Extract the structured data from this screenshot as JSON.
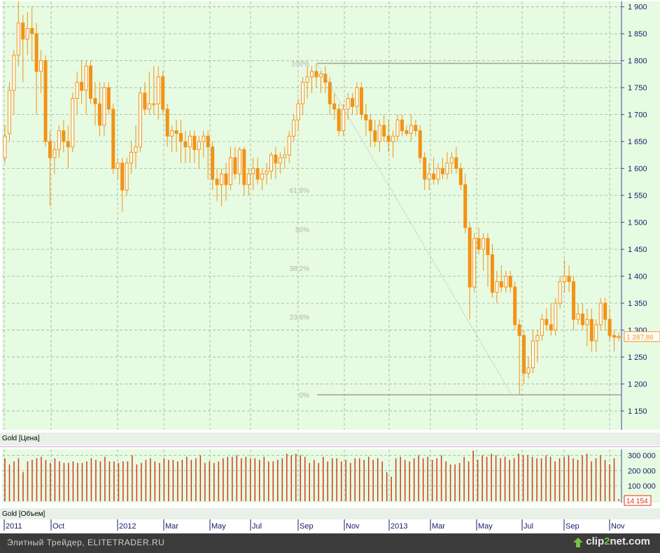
{
  "chart_data": [
    {
      "type": "candlestick",
      "title": "Gold [Цена]",
      "period": "weekly",
      "x_axis_ticks": [
        "2011",
        "Oct",
        "2012",
        "Mar",
        "May",
        "Jul",
        "Sep",
        "Nov",
        "2013",
        "Mar",
        "May",
        "Jul",
        "Sep",
        "Nov"
      ],
      "y_axis_ticks": [
        "1 150",
        "1 200",
        "1 250",
        "1 300",
        "1 350",
        "1 400",
        "1 450",
        "1 500",
        "1 550",
        "1 600",
        "1 650",
        "1 700",
        "1 750",
        "1 800",
        "1 850",
        "1 900"
      ],
      "ylim": [
        1115,
        1910
      ],
      "last_price_label": "1 287,86",
      "series": [
        {
          "name": "Gold",
          "ohlc": [
            [
              1620,
              1680,
              1610,
              1660
            ],
            [
              1665,
              1760,
              1650,
              1745
            ],
            [
              1745,
              1820,
              1700,
              1810
            ],
            [
              1810,
              1910,
              1790,
              1870
            ],
            [
              1870,
              1885,
              1760,
              1840
            ],
            [
              1840,
              1890,
              1810,
              1860
            ],
            [
              1860,
              1900,
              1800,
              1850
            ],
            [
              1850,
              1870,
              1700,
              1780
            ],
            [
              1780,
              1820,
              1740,
              1800
            ],
            [
              1800,
              1810,
              1640,
              1650
            ],
            [
              1650,
              1670,
              1530,
              1620
            ],
            [
              1620,
              1650,
              1590,
              1635
            ],
            [
              1635,
              1680,
              1620,
              1670
            ],
            [
              1670,
              1690,
              1630,
              1650
            ],
            [
              1650,
              1680,
              1600,
              1640
            ],
            [
              1640,
              1740,
              1630,
              1730
            ],
            [
              1730,
              1780,
              1700,
              1760
            ],
            [
              1760,
              1800,
              1720,
              1745
            ],
            [
              1745,
              1800,
              1700,
              1790
            ],
            [
              1790,
              1800,
              1720,
              1730
            ],
            [
              1730,
              1760,
              1680,
              1720
            ],
            [
              1720,
              1760,
              1660,
              1680
            ],
            [
              1680,
              1760,
              1660,
              1750
            ],
            [
              1750,
              1760,
              1700,
              1710
            ],
            [
              1710,
              1720,
              1590,
              1600
            ],
            [
              1600,
              1620,
              1580,
              1610
            ],
            [
              1610,
              1620,
              1520,
              1560
            ],
            [
              1560,
              1620,
              1550,
              1610
            ],
            [
              1610,
              1650,
              1590,
              1630
            ],
            [
              1630,
              1680,
              1600,
              1640
            ],
            [
              1640,
              1750,
              1630,
              1740
            ],
            [
              1740,
              1760,
              1700,
              1710
            ],
            [
              1710,
              1780,
              1700,
              1720
            ],
            [
              1720,
              1790,
              1700,
              1720
            ],
            [
              1720,
              1790,
              1690,
              1770
            ],
            [
              1770,
              1780,
              1700,
              1710
            ],
            [
              1710,
              1720,
              1640,
              1660
            ],
            [
              1660,
              1680,
              1630,
              1670
            ],
            [
              1670,
              1690,
              1630,
              1665
            ],
            [
              1665,
              1690,
              1610,
              1650
            ],
            [
              1650,
              1670,
              1610,
              1640
            ],
            [
              1640,
              1670,
              1610,
              1660
            ],
            [
              1660,
              1670,
              1610,
              1635
            ],
            [
              1635,
              1660,
              1600,
              1650
            ],
            [
              1650,
              1670,
              1620,
              1660
            ],
            [
              1660,
              1670,
              1580,
              1640
            ],
            [
              1640,
              1650,
              1560,
              1580
            ],
            [
              1580,
              1600,
              1540,
              1570
            ],
            [
              1570,
              1600,
              1530,
              1590
            ],
            [
              1590,
              1610,
              1540,
              1570
            ],
            [
              1570,
              1640,
              1560,
              1620
            ],
            [
              1620,
              1640,
              1580,
              1590
            ],
            [
              1590,
              1640,
              1570,
              1635
            ],
            [
              1635,
              1640,
              1550,
              1570
            ],
            [
              1570,
              1600,
              1550,
              1590
            ],
            [
              1590,
              1620,
              1560,
              1600
            ],
            [
              1600,
              1620,
              1570,
              1580
            ],
            [
              1580,
              1600,
              1560,
              1590
            ],
            [
              1590,
              1610,
              1570,
              1595
            ],
            [
              1595,
              1630,
              1580,
              1625
            ],
            [
              1625,
              1640,
              1580,
              1610
            ],
            [
              1610,
              1630,
              1590,
              1620
            ],
            [
              1620,
              1640,
              1600,
              1625
            ],
            [
              1625,
              1670,
              1610,
              1660
            ],
            [
              1660,
              1700,
              1650,
              1690
            ],
            [
              1690,
              1730,
              1670,
              1720
            ],
            [
              1720,
              1770,
              1700,
              1760
            ],
            [
              1760,
              1790,
              1730,
              1770
            ],
            [
              1770,
              1790,
              1740,
              1780
            ],
            [
              1780,
              1795,
              1750,
              1770
            ],
            [
              1770,
              1780,
              1740,
              1775
            ],
            [
              1775,
              1790,
              1740,
              1760
            ],
            [
              1760,
              1770,
              1700,
              1720
            ],
            [
              1720,
              1740,
              1690,
              1710
            ],
            [
              1710,
              1720,
              1660,
              1670
            ],
            [
              1670,
              1720,
              1660,
              1710
            ],
            [
              1710,
              1740,
              1690,
              1730
            ],
            [
              1730,
              1740,
              1700,
              1715
            ],
            [
              1715,
              1760,
              1700,
              1750
            ],
            [
              1750,
              1760,
              1690,
              1700
            ],
            [
              1700,
              1720,
              1660,
              1690
            ],
            [
              1690,
              1700,
              1640,
              1670
            ],
            [
              1670,
              1690,
              1640,
              1650
            ],
            [
              1650,
              1690,
              1630,
              1680
            ],
            [
              1680,
              1700,
              1650,
              1660
            ],
            [
              1660,
              1690,
              1630,
              1650
            ],
            [
              1650,
              1670,
              1620,
              1660
            ],
            [
              1660,
              1700,
              1650,
              1690
            ],
            [
              1690,
              1700,
              1660,
              1670
            ],
            [
              1670,
              1680,
              1660,
              1665
            ],
            [
              1665,
              1700,
              1650,
              1680
            ],
            [
              1680,
              1690,
              1660,
              1670
            ],
            [
              1670,
              1680,
              1610,
              1620
            ],
            [
              1620,
              1630,
              1560,
              1580
            ],
            [
              1580,
              1610,
              1560,
              1590
            ],
            [
              1590,
              1620,
              1570,
              1580
            ],
            [
              1580,
              1610,
              1570,
              1600
            ],
            [
              1600,
              1620,
              1580,
              1590
            ],
            [
              1590,
              1630,
              1580,
              1610
            ],
            [
              1610,
              1630,
              1590,
              1620
            ],
            [
              1620,
              1640,
              1590,
              1600
            ],
            [
              1600,
              1610,
              1560,
              1570
            ],
            [
              1570,
              1590,
              1480,
              1490
            ],
            [
              1490,
              1500,
              1320,
              1380
            ],
            [
              1380,
              1480,
              1370,
              1470
            ],
            [
              1470,
              1490,
              1440,
              1450
            ],
            [
              1450,
              1480,
              1410,
              1470
            ],
            [
              1470,
              1480,
              1380,
              1440
            ],
            [
              1440,
              1460,
              1360,
              1370
            ],
            [
              1370,
              1410,
              1350,
              1390
            ],
            [
              1390,
              1420,
              1370,
              1380
            ],
            [
              1380,
              1410,
              1370,
              1400
            ],
            [
              1400,
              1410,
              1370,
              1380
            ],
            [
              1380,
              1390,
              1300,
              1310
            ],
            [
              1310,
              1320,
              1180,
              1290
            ],
            [
              1290,
              1300,
              1200,
              1220
            ],
            [
              1220,
              1250,
              1210,
              1230
            ],
            [
              1230,
              1300,
              1220,
              1280
            ],
            [
              1280,
              1300,
              1240,
              1290
            ],
            [
              1290,
              1330,
              1280,
              1320
            ],
            [
              1320,
              1340,
              1300,
              1310
            ],
            [
              1310,
              1350,
              1290,
              1300
            ],
            [
              1300,
              1360,
              1290,
              1350
            ],
            [
              1350,
              1400,
              1340,
              1390
            ],
            [
              1390,
              1430,
              1370,
              1400
            ],
            [
              1400,
              1420,
              1370,
              1390
            ],
            [
              1390,
              1400,
              1300,
              1320
            ],
            [
              1320,
              1350,
              1310,
              1330
            ],
            [
              1330,
              1350,
              1300,
              1310
            ],
            [
              1310,
              1340,
              1270,
              1320
            ],
            [
              1320,
              1340,
              1260,
              1280
            ],
            [
              1280,
              1320,
              1260,
              1310
            ],
            [
              1310,
              1360,
              1300,
              1350
            ],
            [
              1350,
              1360,
              1300,
              1320
            ],
            [
              1320,
              1340,
              1280,
              1290
            ],
            [
              1290,
              1300,
              1260,
              1287
            ],
            [
              1287,
              1295,
              1280,
              1288
            ]
          ]
        }
      ],
      "fibonacci": {
        "high": 1795,
        "low": 1180,
        "levels": [
          {
            "label": "100%",
            "value": 1795
          },
          {
            "label": "61,8%",
            "value": 1560
          },
          {
            "label": "50%",
            "value": 1487
          },
          {
            "label": "38,2%",
            "value": 1415
          },
          {
            "label": "23,6%",
            "value": 1325
          },
          {
            "label": "0%",
            "value": 1180
          }
        ]
      },
      "grid": true
    },
    {
      "type": "bar",
      "title": "Gold [Объем]",
      "y_axis_ticks": [
        "100 000",
        "200 000",
        "300 000"
      ],
      "ylim": [
        0,
        320000
      ],
      "last_value_label": "14 154",
      "series": [
        {
          "name": "Volume",
          "values": [
            280000,
            240000,
            260000,
            280000,
            190000,
            260000,
            270000,
            280000,
            290000,
            270000,
            250000,
            280000,
            260000,
            250000,
            250000,
            260000,
            250000,
            250000,
            260000,
            280000,
            270000,
            260000,
            290000,
            260000,
            260000,
            250000,
            260000,
            260000,
            300000,
            240000,
            250000,
            270000,
            280000,
            260000,
            250000,
            280000,
            270000,
            270000,
            260000,
            270000,
            290000,
            270000,
            280000,
            300000,
            250000,
            260000,
            250000,
            260000,
            280000,
            290000,
            290000,
            300000,
            280000,
            290000,
            280000,
            280000,
            270000,
            290000,
            260000,
            260000,
            270000,
            280000,
            310000,
            300000,
            310000,
            300000,
            290000,
            250000,
            270000,
            250000,
            290000,
            260000,
            280000,
            280000,
            260000,
            270000,
            250000,
            280000,
            280000,
            270000,
            290000,
            270000,
            280000,
            260000,
            190000,
            160000,
            280000,
            290000,
            270000,
            260000,
            280000,
            300000,
            280000,
            290000,
            270000,
            280000,
            300000,
            260000,
            240000,
            240000,
            250000,
            290000,
            260000,
            330000,
            270000,
            300000,
            290000,
            310000,
            300000,
            280000,
            290000,
            270000,
            280000,
            310000,
            300000,
            300000,
            290000,
            280000,
            280000,
            300000,
            290000,
            260000,
            280000,
            290000,
            300000,
            280000,
            270000,
            300000,
            310000,
            260000,
            280000,
            300000,
            270000,
            240000,
            280000,
            14154
          ]
        }
      ]
    }
  ],
  "x_axis_labels": [
    "2011",
    "Oct",
    "2012",
    "Mar",
    "May",
    "Jul",
    "Sep",
    "Nov",
    "2013",
    "Mar",
    "May",
    "Jul",
    "Sep",
    "Nov"
  ],
  "footer": {
    "left_text": "Элитный Трейдер, ELITETRADER.RU",
    "logo_prefix": "clip",
    "logo_two": "2",
    "logo_suffix": "net.com"
  },
  "colors": {
    "background": "#e6fbe1",
    "candle": "#f39217",
    "grid": "#9ab59a",
    "volume": "#d33b1f",
    "fib_line": "#a0a0a0",
    "last_price_text": "#f39217",
    "last_volume_text": "#e03010"
  }
}
